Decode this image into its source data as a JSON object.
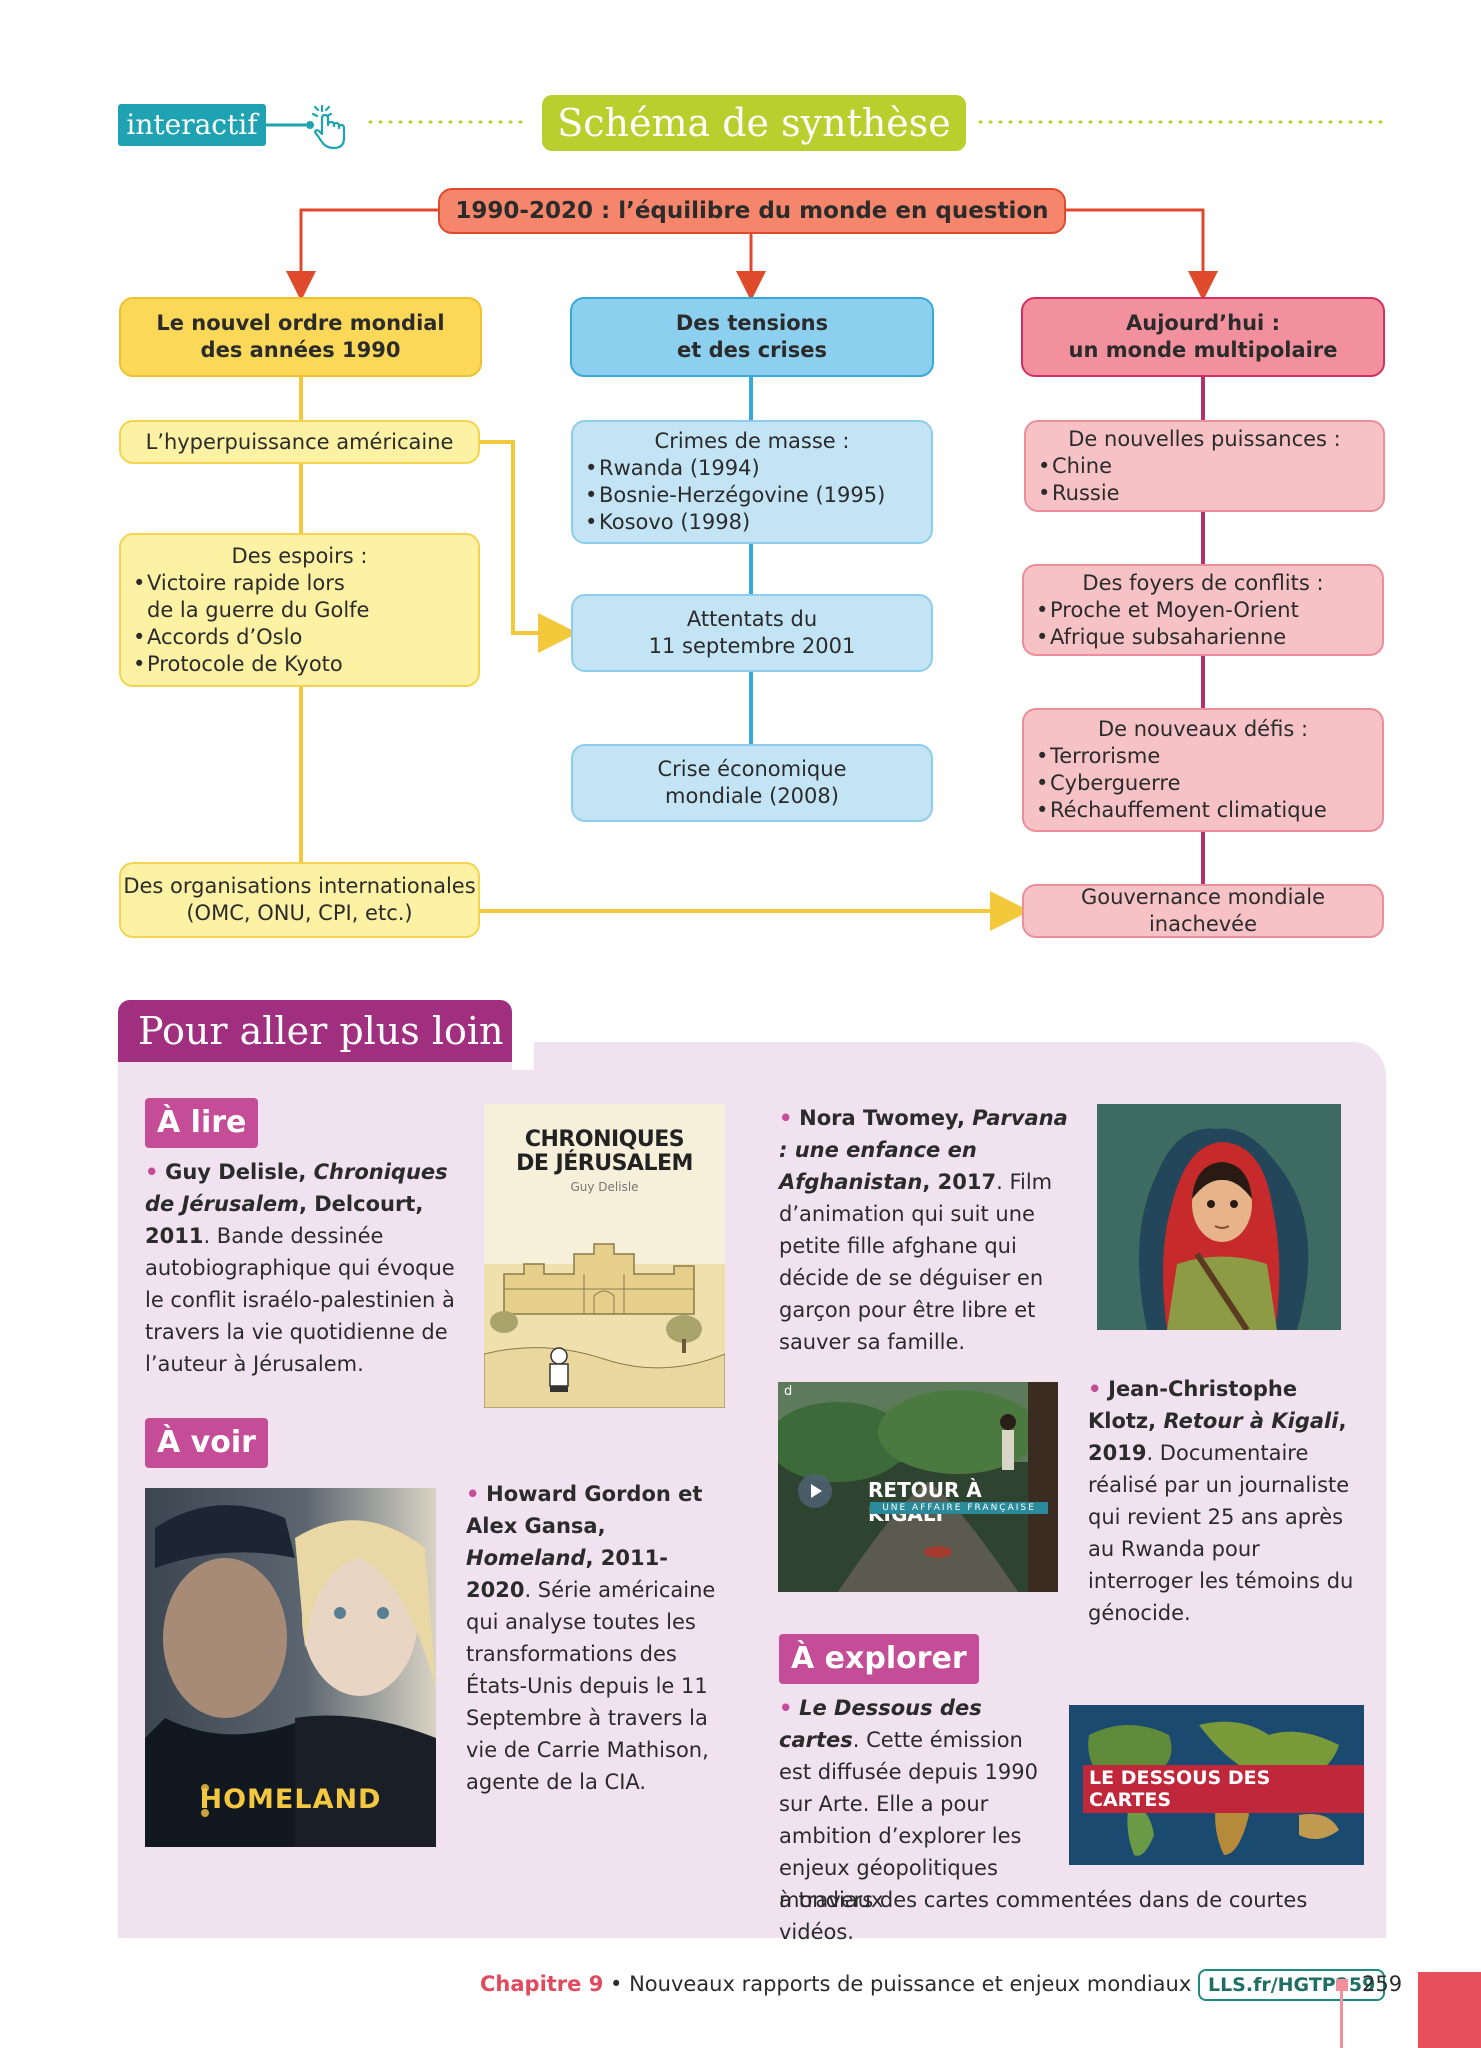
{
  "header": {
    "interactif_label": "interactif",
    "title": "Schéma de synthèse",
    "icons": [
      "hand-pointer-icon"
    ]
  },
  "diagram": {
    "root": "1990-2020 : l’équilibre du monde en question",
    "col1": {
      "head_l1": "Le nouvel ordre mondial",
      "head_l2": "des années 1990",
      "n1": "L’hyperpuissance américaine",
      "n2_title": "Des espoirs :",
      "n2_items": [
        "Victoire rapide lors",
        "de la guerre du Golfe",
        "Accords d’Oslo",
        "Protocole de Kyoto"
      ],
      "n3_l1": "Des organisations internationales",
      "n3_l2": "(OMC, ONU, CPI, etc.)"
    },
    "col2": {
      "head_l1": "Des tensions",
      "head_l2": "et des crises",
      "n1_title": "Crimes de masse :",
      "n1_items": [
        "Rwanda (1994)",
        "Bosnie-Herzégovine (1995)",
        "Kosovo (1998)"
      ],
      "n2_l1": "Attentats du",
      "n2_l2": "11 septembre 2001",
      "n3_l1": "Crise économique",
      "n3_l2": "mondiale (2008)"
    },
    "col3": {
      "head_l1": "Aujourd’hui :",
      "head_l2": "un monde multipolaire",
      "n1_title": "De nouvelles puissances :",
      "n1_items": [
        "Chine",
        "Russie"
      ],
      "n2_title": "Des foyers de conflits :",
      "n2_items": [
        "Proche et Moyen-Orient",
        "Afrique subsaharienne"
      ],
      "n3_title": "De nouveaux défis :",
      "n3_items": [
        "Terrorisme",
        "Cyberguerre",
        "Réchauffement climatique"
      ],
      "n4": "Gouvernance mondiale inachevée"
    },
    "colors": {
      "yellow": "#fcd859",
      "blue": "#8ccfee",
      "red": "#f3909e",
      "root": "#f5866c"
    }
  },
  "section": {
    "title": "Pour aller plus loin",
    "a_lire": "À lire",
    "a_voir": "À voir",
    "a_explorer": "À explorer",
    "delisle": {
      "bold": "Guy Delisle, ",
      "bold_italic": "Chroniques de Jérusalem",
      "bold2": ", Delcourt, 2011",
      "rest": ". Bande dessinée autobiographique qui évoque le conflit israélo-palestinien à travers la vie quotidienne de l’auteur à Jérusalem."
    },
    "cover1": {
      "title_l1": "CHRONIQUES",
      "title_l2": "DE JÉRUSALEM",
      "author": "Guy Delisle"
    },
    "twomey": {
      "bold": "Nora Twomey, ",
      "bold_italic": "Parvana : une enfance en Afghanistan",
      "bold2": ", 2017",
      "rest": ". Film d’animation qui suit une petite fille afghane qui décide de se déguiser en garçon pour être libre et sauver sa famille."
    },
    "klotz": {
      "bold": "Jean-Christophe Klotz, ",
      "bold_italic": "Retour à Kigali",
      "bold2": ", 2019",
      "rest": ". Documentaire réalisé par un journaliste qui revient 25 ans après au Rwanda pour interroger les témoins du génocide."
    },
    "kigali_img": {
      "title": "RETOUR À KIGALI",
      "subtitle": "UNE AFFAIRE FRANÇAISE",
      "corner": "d"
    },
    "gordon": {
      "bold": "Howard Gordon et Alex Gansa, ",
      "bold_italic": "Homeland",
      "bold2": ", 2011-2020",
      "rest": ". Série américaine qui analyse toutes les transformations des États-Unis depuis le 11 Septembre à travers la vie de Carrie Mathison, agente de la CIA."
    },
    "homeland_img": {
      "title": "HOMELAND"
    },
    "dessous": {
      "bold_italic": "Le Dessous des cartes",
      "rest": ". Cette émission est diffusée depuis 1990 sur Arte. Elle a pour ambition d’explorer les enjeux géopolitiques mondiaux",
      "tail": "à travers des cartes commentées dans de courtes vidéos."
    },
    "dessous_img": {
      "title": "LE DESSOUS DES CARTES"
    }
  },
  "footer": {
    "chapter": "Chapitre 9",
    "sep": " • ",
    "text": "Nouveaux rapports de puissance et enjeux mondiaux",
    "link": "LLS.fr/HGTP259",
    "page": "259"
  }
}
